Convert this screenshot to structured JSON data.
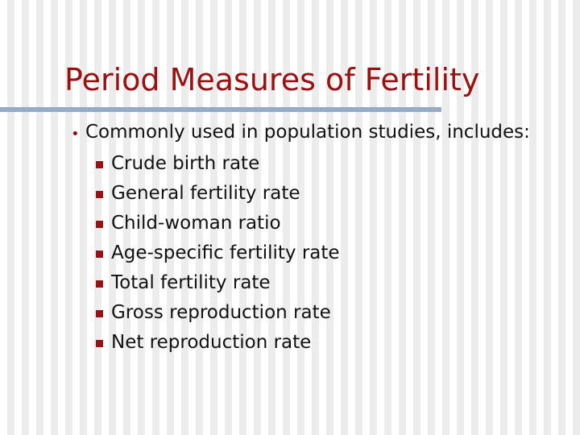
{
  "slide": {
    "title": "Period Measures of Fertility",
    "colors": {
      "title": "#9a1111",
      "rule": "#96acc6",
      "bullet": "#9a1111",
      "text": "#111111"
    },
    "bullet": {
      "text": "Commonly used in population studies, includes:",
      "items": [
        "Crude birth rate",
        "General fertility rate",
        "Child-woman ratio",
        "Age-specific fertility rate",
        "Total fertility rate",
        "Gross reproduction rate",
        "Net reproduction rate"
      ]
    }
  }
}
